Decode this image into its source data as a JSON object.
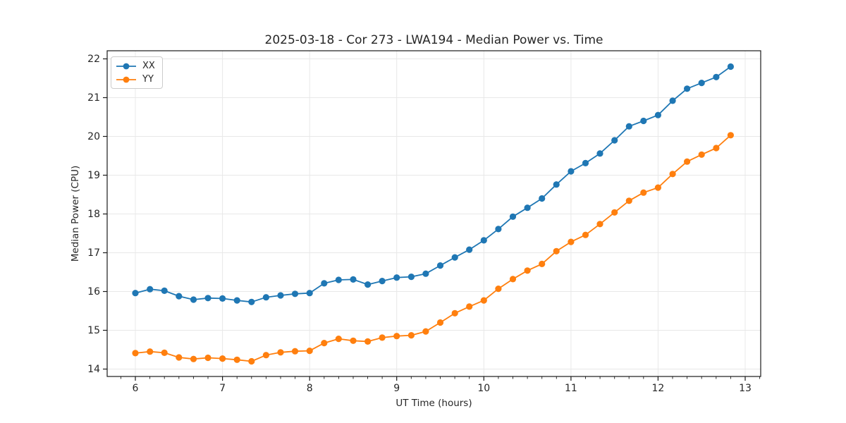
{
  "chart_data": {
    "type": "line",
    "title": "2025-03-18 - Cor 273 - LWA194 - Median Power vs. Time",
    "xlabel": "UT Time (hours)",
    "ylabel": "Median Power (CPU)",
    "xlim": [
      5.676,
      13.178
    ],
    "ylim": [
      13.809,
      22.209
    ],
    "x_ticks": [
      6,
      7,
      8,
      9,
      10,
      11,
      12,
      13
    ],
    "y_ticks": [
      14,
      15,
      16,
      17,
      18,
      19,
      20,
      21,
      22
    ],
    "x_minor_step": 0.1666667,
    "grid": true,
    "legend_position": "upper left",
    "x": [
      6.0,
      6.167,
      6.333,
      6.5,
      6.667,
      6.833,
      7.0,
      7.167,
      7.333,
      7.5,
      7.667,
      7.833,
      8.0,
      8.167,
      8.333,
      8.5,
      8.667,
      8.833,
      9.0,
      9.167,
      9.333,
      9.5,
      9.667,
      9.833,
      10.0,
      10.167,
      10.333,
      10.5,
      10.667,
      10.833,
      11.0,
      11.167,
      11.333,
      11.5,
      11.667,
      11.833,
      12.0,
      12.167,
      12.333,
      12.5,
      12.667,
      12.833
    ],
    "series": [
      {
        "name": "XX",
        "color": "#1f77b4",
        "values": [
          15.96,
          16.06,
          16.02,
          15.88,
          15.79,
          15.83,
          15.82,
          15.77,
          15.73,
          15.85,
          15.9,
          15.94,
          15.96,
          16.21,
          16.3,
          16.31,
          16.18,
          16.27,
          16.36,
          16.38,
          16.46,
          16.67,
          16.88,
          17.08,
          17.32,
          17.61,
          17.93,
          18.16,
          18.4,
          18.76,
          19.1,
          19.31,
          19.56,
          19.9,
          20.26,
          20.4,
          20.55,
          20.92,
          21.23,
          21.38,
          21.53,
          21.8
        ]
      },
      {
        "name": "YY",
        "color": "#ff7f0e",
        "values": [
          14.41,
          14.45,
          14.42,
          14.3,
          14.26,
          14.29,
          14.27,
          14.24,
          14.2,
          14.36,
          14.43,
          14.46,
          14.47,
          14.67,
          14.78,
          14.73,
          14.71,
          14.81,
          14.85,
          14.87,
          14.97,
          15.2,
          15.44,
          15.61,
          15.77,
          16.07,
          16.32,
          16.54,
          16.71,
          17.04,
          17.28,
          17.46,
          17.74,
          18.04,
          18.34,
          18.55,
          18.68,
          19.03,
          19.35,
          19.53,
          19.7,
          20.03
        ]
      }
    ]
  },
  "colors": {
    "background": "#ffffff",
    "grid": "#e8e8e8",
    "spine": "#1a1a1a",
    "tick_text": "#262626",
    "legend_border": "#cccccc"
  }
}
